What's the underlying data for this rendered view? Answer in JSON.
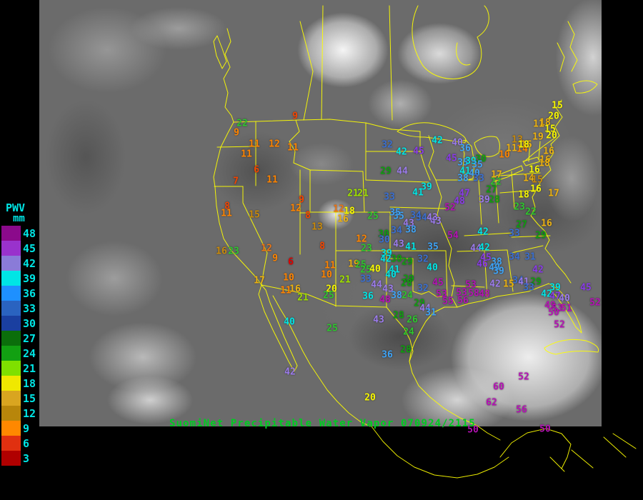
{
  "footer": {
    "title": "SuomiNet Precipitable Water Vapor 070924/2115"
  },
  "legend": {
    "title": "PWV",
    "unit": "mm",
    "entries": [
      {
        "value": "48",
        "color": "#8b0a8b"
      },
      {
        "value": "45",
        "color": "#9932cc"
      },
      {
        "value": "42",
        "color": "#8a7bd8"
      },
      {
        "value": "39",
        "color": "#00e5e5"
      },
      {
        "value": "36",
        "color": "#1e90ff"
      },
      {
        "value": "33",
        "color": "#2a63c0"
      },
      {
        "value": "30",
        "color": "#1a3fa0"
      },
      {
        "value": "27",
        "color": "#0b6e0b"
      },
      {
        "value": "24",
        "color": "#12a012"
      },
      {
        "value": "21",
        "color": "#7fe000"
      },
      {
        "value": "18",
        "color": "#f0e800"
      },
      {
        "value": "15",
        "color": "#d9a520"
      },
      {
        "value": "12",
        "color": "#b8860b"
      },
      {
        "value": "9",
        "color": "#ff8800"
      },
      {
        "value": "6",
        "color": "#e03010"
      },
      {
        "value": "3",
        "color": "#b00000"
      }
    ]
  },
  "colors": {
    "map_outline": "#ffff00",
    "legend_text": "#00e5e5",
    "title_text": "#00cc22",
    "background": "#000000"
  },
  "palette": {
    "red": "#e00000",
    "orangered": "#f34400",
    "orange": "#ff8400",
    "darkorange": "#ed7514",
    "goldenrod": "#c98a0b",
    "gold": "#edb211",
    "yellow": "#f8f800",
    "chartreuse": "#9fe000",
    "green": "#2fc62f",
    "darkgreen": "#0fa00f",
    "steelblue": "#3a6fd0",
    "blue": "#3fa3f5",
    "cyan": "#00e5e5",
    "lightpurple": "#9b7beb",
    "violet": "#8a3be8",
    "magenta": "#b511b5"
  },
  "station_format": [
    "value",
    "x",
    "y",
    "color_key"
  ],
  "stations": [
    [
      22,
      339,
      173,
      "green"
    ],
    [
      9,
      331,
      186,
      "orange"
    ],
    [
      9,
      413,
      163,
      "orangered"
    ],
    [
      11,
      356,
      202,
      "orange"
    ],
    [
      12,
      384,
      202,
      "orange"
    ],
    [
      11,
      410,
      207,
      "orange"
    ],
    [
      11,
      345,
      216,
      "orange"
    ],
    [
      6,
      359,
      238,
      "orangered"
    ],
    [
      7,
      330,
      254,
      "orangered"
    ],
    [
      11,
      381,
      252,
      "orange"
    ],
    [
      9,
      422,
      280,
      "orangered"
    ],
    [
      8,
      318,
      289,
      "orangered"
    ],
    [
      11,
      317,
      299,
      "orange"
    ],
    [
      15,
      356,
      301,
      "goldenrod"
    ],
    [
      12,
      414,
      292,
      "orange"
    ],
    [
      8,
      431,
      302,
      "orangered"
    ],
    [
      12,
      474,
      293,
      "darkorange"
    ],
    [
      18,
      489,
      296,
      "yellow"
    ],
    [
      16,
      480,
      307,
      "gold"
    ],
    [
      13,
      444,
      318,
      "goldenrod"
    ],
    [
      8,
      451,
      345,
      "orangered"
    ],
    [
      12,
      506,
      335,
      "orange"
    ],
    [
      21,
      494,
      271,
      "chartreuse"
    ],
    [
      21,
      508,
      271,
      "chartreuse"
    ],
    [
      25,
      522,
      303,
      "green"
    ],
    [
      16,
      310,
      352,
      "goldenrod"
    ],
    [
      23,
      327,
      352,
      "green"
    ],
    [
      12,
      373,
      348,
      "darkorange"
    ],
    [
      9,
      385,
      362,
      "orange"
    ],
    [
      6,
      407,
      367,
      "red"
    ],
    [
      17,
      363,
      393,
      "gold"
    ],
    [
      10,
      404,
      389,
      "orange"
    ],
    [
      11,
      400,
      407,
      "orange"
    ],
    [
      16,
      413,
      405,
      "gold"
    ],
    [
      21,
      424,
      417,
      "chartreuse"
    ],
    [
      11,
      462,
      372,
      "orange"
    ],
    [
      10,
      457,
      385,
      "orange"
    ],
    [
      19,
      495,
      370,
      "gold"
    ],
    [
      25,
      505,
      371,
      "green"
    ],
    [
      25,
      512,
      378,
      "green"
    ],
    [
      21,
      483,
      392,
      "chartreuse"
    ],
    [
      20,
      464,
      405,
      "yellow"
    ],
    [
      25,
      460,
      414,
      "green"
    ],
    [
      40,
      405,
      451,
      "cyan"
    ],
    [
      25,
      465,
      460,
      "green"
    ],
    [
      42,
      406,
      521,
      "lightpurple"
    ],
    [
      20,
      518,
      557,
      "yellow"
    ],
    [
      33,
      545,
      276,
      "steelblue"
    ],
    [
      35,
      558,
      303,
      "blue"
    ],
    [
      34,
      590,
      305,
      "steelblue"
    ],
    [
      43,
      610,
      310,
      "lightpurple"
    ],
    [
      43,
      572,
      313,
      "lightpurple"
    ],
    [
      38,
      575,
      322,
      "blue"
    ],
    [
      34,
      555,
      323,
      "steelblue"
    ],
    [
      30,
      537,
      328,
      "darkgreen"
    ],
    [
      30,
      538,
      336,
      "steelblue"
    ],
    [
      23,
      513,
      348,
      "green"
    ],
    [
      43,
      558,
      342,
      "lightpurple"
    ],
    [
      39,
      541,
      355,
      "cyan"
    ],
    [
      41,
      575,
      346,
      "cyan"
    ],
    [
      35,
      606,
      346,
      "blue"
    ],
    [
      42,
      540,
      363,
      "cyan"
    ],
    [
      30,
      555,
      363,
      "darkgreen"
    ],
    [
      29,
      570,
      367,
      "darkgreen"
    ],
    [
      32,
      592,
      363,
      "steelblue"
    ],
    [
      40,
      605,
      375,
      "cyan"
    ],
    [
      40,
      525,
      377,
      "yellow"
    ],
    [
      41,
      552,
      378,
      "cyan"
    ],
    [
      40,
      547,
      385,
      "cyan"
    ],
    [
      29,
      572,
      391,
      "darkgreen"
    ],
    [
      28,
      569,
      397,
      "darkgreen"
    ],
    [
      15,
      712,
      398,
      "gold"
    ],
    [
      45,
      613,
      396,
      "magenta"
    ],
    [
      53,
      618,
      412,
      "magenta"
    ],
    [
      55,
      627,
      422,
      "magenta"
    ],
    [
      56,
      648,
      421,
      "magenta"
    ],
    [
      53,
      659,
      399,
      "magenta"
    ],
    [
      53,
      646,
      410,
      "magenta"
    ],
    [
      58,
      663,
      411,
      "magenta"
    ],
    [
      48,
      678,
      412,
      "magenta"
    ],
    [
      42,
      693,
      398,
      "lightpurple"
    ],
    [
      33,
      512,
      391,
      "steelblue"
    ],
    [
      36,
      515,
      415,
      "cyan"
    ],
    [
      44,
      527,
      399,
      "lightpurple"
    ],
    [
      43,
      543,
      405,
      "lightpurple"
    ],
    [
      48,
      539,
      420,
      "magenta"
    ],
    [
      38,
      555,
      414,
      "blue"
    ],
    [
      24,
      570,
      414,
      "green"
    ],
    [
      32,
      592,
      404,
      "steelblue"
    ],
    [
      29,
      587,
      425,
      "darkgreen"
    ],
    [
      44,
      595,
      432,
      "lightpurple"
    ],
    [
      31,
      603,
      438,
      "blue"
    ],
    [
      28,
      558,
      442,
      "darkgreen"
    ],
    [
      26,
      577,
      448,
      "green"
    ],
    [
      43,
      530,
      448,
      "lightpurple"
    ],
    [
      24,
      572,
      465,
      "green"
    ],
    [
      28,
      568,
      490,
      "darkgreen"
    ],
    [
      36,
      542,
      497,
      "blue"
    ],
    [
      32,
      542,
      203,
      "steelblue"
    ],
    [
      42,
      562,
      213,
      "cyan"
    ],
    [
      45,
      586,
      212,
      "violet"
    ],
    [
      42,
      612,
      197,
      "cyan"
    ],
    [
      40,
      640,
      200,
      "lightpurple"
    ],
    [
      36,
      651,
      208,
      "blue"
    ],
    [
      45,
      632,
      222,
      "violet"
    ],
    [
      35,
      648,
      228,
      "blue"
    ],
    [
      39,
      659,
      226,
      "cyan"
    ],
    [
      30,
      673,
      223,
      "darkgreen"
    ],
    [
      35,
      668,
      231,
      "blue"
    ],
    [
      41,
      651,
      240,
      "cyan"
    ],
    [
      40,
      664,
      243,
      "blue"
    ],
    [
      38,
      648,
      250,
      "blue"
    ],
    [
      33,
      670,
      250,
      "steelblue"
    ],
    [
      29,
      540,
      240,
      "darkgreen"
    ],
    [
      44,
      563,
      240,
      "lightpurple"
    ],
    [
      39,
      597,
      262,
      "cyan"
    ],
    [
      41,
      585,
      270,
      "cyan"
    ],
    [
      47,
      650,
      271,
      "violet"
    ],
    [
      48,
      643,
      282,
      "violet"
    ],
    [
      52,
      630,
      291,
      "magenta"
    ],
    [
      27,
      688,
      266,
      "darkgreen"
    ],
    [
      22,
      694,
      255,
      "green"
    ],
    [
      17,
      695,
      245,
      "gold"
    ],
    [
      39,
      678,
      280,
      "lightpurple"
    ],
    [
      28,
      692,
      280,
      "darkgreen"
    ],
    [
      35,
      553,
      298,
      "blue"
    ],
    [
      34,
      582,
      302,
      "steelblue"
    ],
    [
      43,
      605,
      305,
      "lightpurple"
    ],
    [
      54,
      634,
      330,
      "magenta"
    ],
    [
      42,
      676,
      325,
      "cyan"
    ],
    [
      33,
      720,
      327,
      "steelblue"
    ],
    [
      29,
      757,
      330,
      "darkgreen"
    ],
    [
      27,
      730,
      315,
      "darkgreen"
    ],
    [
      16,
      765,
      313,
      "gold"
    ],
    [
      23,
      727,
      290,
      "green"
    ],
    [
      22,
      743,
      297,
      "green"
    ],
    [
      44,
      666,
      348,
      "lightpurple"
    ],
    [
      42,
      678,
      347,
      "cyan"
    ],
    [
      45,
      680,
      361,
      "violet"
    ],
    [
      46,
      675,
      370,
      "violet"
    ],
    [
      38,
      695,
      367,
      "blue"
    ],
    [
      40,
      692,
      375,
      "blue"
    ],
    [
      39,
      698,
      380,
      "blue"
    ],
    [
      34,
      720,
      360,
      "steelblue"
    ],
    [
      31,
      742,
      360,
      "steelblue"
    ],
    [
      42,
      753,
      378,
      "violet"
    ],
    [
      34,
      725,
      393,
      "steelblue"
    ],
    [
      41,
      733,
      395,
      "lightpurple"
    ],
    [
      29,
      750,
      395,
      "darkgreen"
    ],
    [
      33,
      740,
      403,
      "steelblue"
    ],
    [
      39,
      777,
      403,
      "cyan"
    ],
    [
      42,
      765,
      412,
      "cyan"
    ],
    [
      45,
      820,
      403,
      "violet"
    ],
    [
      47,
      777,
      415,
      "violet"
    ],
    [
      40,
      790,
      418,
      "lightpurple"
    ],
    [
      49,
      770,
      428,
      "magenta"
    ],
    [
      53,
      780,
      432,
      "magenta"
    ],
    [
      51,
      793,
      432,
      "magenta"
    ],
    [
      50,
      775,
      438,
      "magenta"
    ],
    [
      52,
      833,
      424,
      "magenta"
    ],
    [
      52,
      783,
      455,
      "magenta"
    ],
    [
      52,
      733,
      528,
      "magenta"
    ],
    [
      60,
      698,
      542,
      "magenta"
    ],
    [
      62,
      688,
      564,
      "magenta"
    ],
    [
      56,
      730,
      574,
      "magenta"
    ],
    [
      50,
      662,
      602,
      "magenta"
    ],
    [
      50,
      763,
      601,
      "magenta"
    ],
    [
      15,
      780,
      148,
      "yellow"
    ],
    [
      20,
      775,
      163,
      "yellow"
    ],
    [
      18,
      763,
      172,
      "gold"
    ],
    [
      11,
      754,
      174,
      "gold"
    ],
    [
      15,
      770,
      181,
      "yellow"
    ],
    [
      19,
      753,
      192,
      "gold"
    ],
    [
      20,
      772,
      190,
      "yellow"
    ],
    [
      13,
      724,
      196,
      "goldenrod"
    ],
    [
      15,
      737,
      203,
      "gold"
    ],
    [
      14,
      731,
      209,
      "orange"
    ],
    [
      10,
      706,
      217,
      "orange"
    ],
    [
      11,
      716,
      208,
      "gold"
    ],
    [
      18,
      733,
      203,
      "yellow"
    ],
    [
      16,
      768,
      212,
      "gold"
    ],
    [
      16,
      763,
      224,
      "gold"
    ],
    [
      18,
      762,
      229,
      "gold"
    ],
    [
      16,
      748,
      238,
      "yellow"
    ],
    [
      14,
      740,
      250,
      "gold"
    ],
    [
      15,
      752,
      252,
      "goldenrod"
    ],
    [
      16,
      750,
      265,
      "yellow"
    ],
    [
      18,
      733,
      273,
      "yellow"
    ],
    [
      17,
      775,
      271,
      "gold"
    ]
  ]
}
